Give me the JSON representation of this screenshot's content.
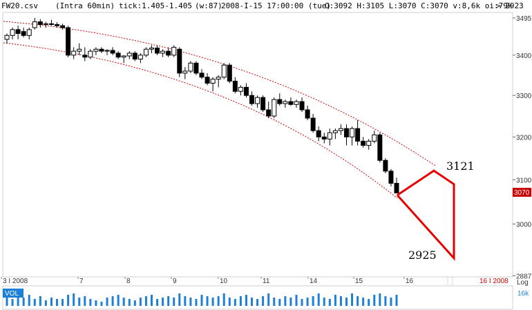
{
  "header": {
    "file": "FW20.csv",
    "interval": "(Intra 60min)",
    "tick": "tick:1.405-1.405",
    "w": "(w:87)",
    "datetime": "2008-I-15 17:00:00 (tue)",
    "ohlc": "O:3092 H:3105 L:3070 C:3070 v:8,6k oi:79k",
    "pointer": "> 2923"
  },
  "price_axis": {
    "ticks": [
      "3495",
      "3400",
      "3300",
      "3200",
      "3100",
      "3000",
      "2887"
    ],
    "current_price": "3070",
    "scale_label": "Log"
  },
  "volume_panel": {
    "label": "VOL",
    "max_label": "16k"
  },
  "x_axis": {
    "labels": [
      "3 I 2008",
      "7",
      "8",
      "9",
      "10",
      "11",
      "14",
      "15",
      "16"
    ],
    "end_label": "16 I 2008"
  },
  "annotations": {
    "upper_target": "3121",
    "lower_target": "2925"
  },
  "colors": {
    "channel": "#cc0000",
    "projection": "#e60000",
    "price_marker_bg": "#cc0000",
    "volume": "#1e7fd6"
  },
  "chart_data": {
    "type": "candlestick",
    "interval": "60min",
    "yscale": "log",
    "ylim": [
      2887,
      3495
    ],
    "candles": [
      [
        3440,
        3455,
        3430,
        3450
      ],
      [
        3450,
        3470,
        3440,
        3465
      ],
      [
        3465,
        3475,
        3440,
        3455
      ],
      [
        3460,
        3470,
        3445,
        3450
      ],
      [
        3450,
        3470,
        3440,
        3465
      ],
      [
        3470,
        3495,
        3465,
        3485
      ],
      [
        3485,
        3492,
        3470,
        3478
      ],
      [
        3478,
        3485,
        3470,
        3480
      ],
      [
        3480,
        3490,
        3475,
        3478
      ],
      [
        3478,
        3484,
        3470,
        3475
      ],
      [
        3475,
        3480,
        3465,
        3470
      ],
      [
        3470,
        3475,
        3395,
        3400
      ],
      [
        3400,
        3420,
        3390,
        3410
      ],
      [
        3410,
        3430,
        3400,
        3415
      ],
      [
        3400,
        3420,
        3385,
        3395
      ],
      [
        3395,
        3415,
        3390,
        3410
      ],
      [
        3410,
        3420,
        3400,
        3415
      ],
      [
        3415,
        3420,
        3405,
        3410
      ],
      [
        3410,
        3415,
        3400,
        3412
      ],
      [
        3412,
        3420,
        3400,
        3405
      ],
      [
        3405,
        3410,
        3390,
        3395
      ],
      [
        3395,
        3400,
        3380,
        3398
      ],
      [
        3398,
        3410,
        3390,
        3405
      ],
      [
        3405,
        3410,
        3385,
        3390
      ],
      [
        3390,
        3405,
        3380,
        3400
      ],
      [
        3400,
        3420,
        3395,
        3415
      ],
      [
        3415,
        3425,
        3405,
        3418
      ],
      [
        3418,
        3425,
        3400,
        3405
      ],
      [
        3405,
        3415,
        3395,
        3410
      ],
      [
        3410,
        3420,
        3395,
        3400
      ],
      [
        3400,
        3425,
        3395,
        3420
      ],
      [
        3415,
        3420,
        3345,
        3355
      ],
      [
        3355,
        3370,
        3340,
        3360
      ],
      [
        3360,
        3385,
        3355,
        3380
      ],
      [
        3380,
        3385,
        3350,
        3355
      ],
      [
        3355,
        3365,
        3340,
        3345
      ],
      [
        3345,
        3355,
        3325,
        3330
      ],
      [
        3330,
        3345,
        3310,
        3340
      ],
      [
        3340,
        3350,
        3320,
        3345
      ],
      [
        3345,
        3380,
        3340,
        3375
      ],
      [
        3375,
        3380,
        3330,
        3335
      ],
      [
        3335,
        3345,
        3305,
        3310
      ],
      [
        3310,
        3325,
        3300,
        3320
      ],
      [
        3320,
        3330,
        3295,
        3300
      ],
      [
        3300,
        3310,
        3275,
        3280
      ],
      [
        3280,
        3300,
        3270,
        3295
      ],
      [
        3295,
        3300,
        3260,
        3265
      ],
      [
        3265,
        3285,
        3245,
        3250
      ],
      [
        3250,
        3295,
        3245,
        3290
      ],
      [
        3290,
        3305,
        3275,
        3280
      ],
      [
        3280,
        3290,
        3270,
        3285
      ],
      [
        3285,
        3295,
        3275,
        3278
      ],
      [
        3278,
        3290,
        3270,
        3285
      ],
      [
        3285,
        3295,
        3260,
        3265
      ],
      [
        3265,
        3275,
        3240,
        3245
      ],
      [
        3245,
        3255,
        3210,
        3215
      ],
      [
        3215,
        3225,
        3190,
        3200
      ],
      [
        3200,
        3210,
        3185,
        3195
      ],
      [
        3195,
        3220,
        3180,
        3210
      ],
      [
        3210,
        3220,
        3195,
        3215
      ],
      [
        3215,
        3230,
        3205,
        3220
      ],
      [
        3220,
        3230,
        3180,
        3200
      ],
      [
        3200,
        3225,
        3180,
        3220
      ],
      [
        3220,
        3240,
        3180,
        3190
      ],
      [
        3190,
        3200,
        3175,
        3180
      ],
      [
        3180,
        3195,
        3170,
        3190
      ],
      [
        3190,
        3215,
        3185,
        3205
      ],
      [
        3205,
        3210,
        3140,
        3145
      ],
      [
        3145,
        3150,
        3115,
        3120
      ],
      [
        3120,
        3125,
        3085,
        3092
      ],
      [
        3092,
        3105,
        3070,
        3070
      ]
    ],
    "candle_fields": [
      "open",
      "high",
      "low",
      "close"
    ],
    "volume_relative": [
      0.7,
      0.5,
      0.9,
      0.6,
      0.8,
      0.5,
      0.7,
      0.4,
      0.6,
      0.5,
      0.5,
      0.8,
      0.9,
      0.6,
      0.7,
      0.5,
      0.4,
      0.3,
      0.6,
      0.7,
      0.8,
      0.6,
      0.5,
      0.4,
      0.6,
      0.7,
      0.8,
      0.5,
      0.6,
      0.7,
      0.6,
      0.9,
      0.7,
      0.6,
      0.5,
      0.8,
      0.7,
      0.6,
      0.7,
      0.9,
      0.6,
      0.5,
      0.7,
      0.8,
      0.6,
      0.5,
      0.7,
      0.9,
      0.6,
      0.5,
      0.7,
      0.6,
      0.8,
      0.5,
      0.6,
      0.7,
      0.9,
      0.6,
      0.5,
      0.8,
      0.7,
      0.6,
      0.9,
      0.7,
      0.6,
      0.5,
      0.8,
      0.9,
      0.7,
      0.6,
      0.8
    ],
    "projection": {
      "start": 3065,
      "upper_target": 3121,
      "lower_target": 2925
    }
  }
}
